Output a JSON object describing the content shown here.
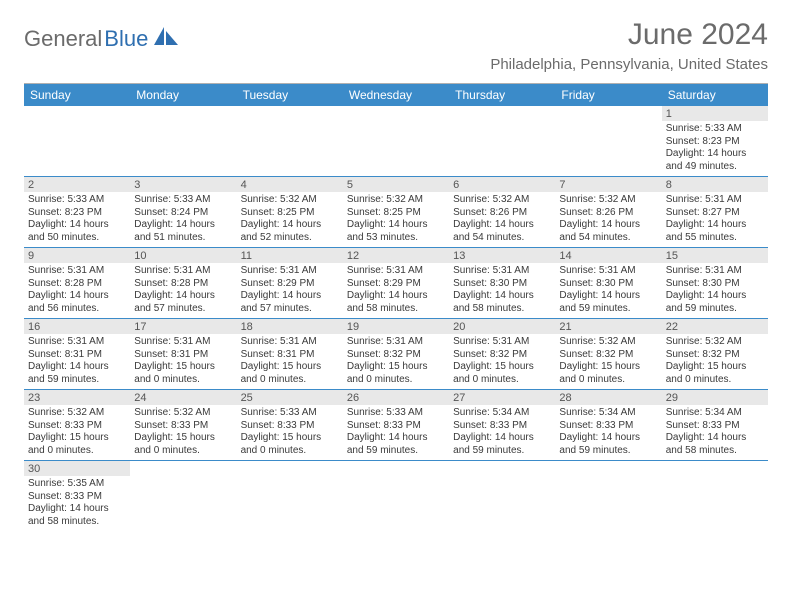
{
  "logo": {
    "gray": "General",
    "blue": "Blue"
  },
  "title": "June 2024",
  "location": "Philadelphia, Pennsylvania, United States",
  "weekdays": [
    "Sunday",
    "Monday",
    "Tuesday",
    "Wednesday",
    "Thursday",
    "Friday",
    "Saturday"
  ],
  "colors": {
    "header_bg": "#3b8bc9",
    "header_text": "#ffffff",
    "daynum_bg": "#e8e8e8",
    "title_color": "#6b6b6b",
    "logo_gray": "#6b6b6b",
    "logo_blue": "#2f6fb0",
    "row_border": "#3b8bc9"
  },
  "weeks": [
    [
      null,
      null,
      null,
      null,
      null,
      null,
      {
        "n": "1",
        "sr": "Sunrise: 5:33 AM",
        "ss": "Sunset: 8:23 PM",
        "d1": "Daylight: 14 hours",
        "d2": "and 49 minutes."
      }
    ],
    [
      {
        "n": "2",
        "sr": "Sunrise: 5:33 AM",
        "ss": "Sunset: 8:23 PM",
        "d1": "Daylight: 14 hours",
        "d2": "and 50 minutes."
      },
      {
        "n": "3",
        "sr": "Sunrise: 5:33 AM",
        "ss": "Sunset: 8:24 PM",
        "d1": "Daylight: 14 hours",
        "d2": "and 51 minutes."
      },
      {
        "n": "4",
        "sr": "Sunrise: 5:32 AM",
        "ss": "Sunset: 8:25 PM",
        "d1": "Daylight: 14 hours",
        "d2": "and 52 minutes."
      },
      {
        "n": "5",
        "sr": "Sunrise: 5:32 AM",
        "ss": "Sunset: 8:25 PM",
        "d1": "Daylight: 14 hours",
        "d2": "and 53 minutes."
      },
      {
        "n": "6",
        "sr": "Sunrise: 5:32 AM",
        "ss": "Sunset: 8:26 PM",
        "d1": "Daylight: 14 hours",
        "d2": "and 54 minutes."
      },
      {
        "n": "7",
        "sr": "Sunrise: 5:32 AM",
        "ss": "Sunset: 8:26 PM",
        "d1": "Daylight: 14 hours",
        "d2": "and 54 minutes."
      },
      {
        "n": "8",
        "sr": "Sunrise: 5:31 AM",
        "ss": "Sunset: 8:27 PM",
        "d1": "Daylight: 14 hours",
        "d2": "and 55 minutes."
      }
    ],
    [
      {
        "n": "9",
        "sr": "Sunrise: 5:31 AM",
        "ss": "Sunset: 8:28 PM",
        "d1": "Daylight: 14 hours",
        "d2": "and 56 minutes."
      },
      {
        "n": "10",
        "sr": "Sunrise: 5:31 AM",
        "ss": "Sunset: 8:28 PM",
        "d1": "Daylight: 14 hours",
        "d2": "and 57 minutes."
      },
      {
        "n": "11",
        "sr": "Sunrise: 5:31 AM",
        "ss": "Sunset: 8:29 PM",
        "d1": "Daylight: 14 hours",
        "d2": "and 57 minutes."
      },
      {
        "n": "12",
        "sr": "Sunrise: 5:31 AM",
        "ss": "Sunset: 8:29 PM",
        "d1": "Daylight: 14 hours",
        "d2": "and 58 minutes."
      },
      {
        "n": "13",
        "sr": "Sunrise: 5:31 AM",
        "ss": "Sunset: 8:30 PM",
        "d1": "Daylight: 14 hours",
        "d2": "and 58 minutes."
      },
      {
        "n": "14",
        "sr": "Sunrise: 5:31 AM",
        "ss": "Sunset: 8:30 PM",
        "d1": "Daylight: 14 hours",
        "d2": "and 59 minutes."
      },
      {
        "n": "15",
        "sr": "Sunrise: 5:31 AM",
        "ss": "Sunset: 8:30 PM",
        "d1": "Daylight: 14 hours",
        "d2": "and 59 minutes."
      }
    ],
    [
      {
        "n": "16",
        "sr": "Sunrise: 5:31 AM",
        "ss": "Sunset: 8:31 PM",
        "d1": "Daylight: 14 hours",
        "d2": "and 59 minutes."
      },
      {
        "n": "17",
        "sr": "Sunrise: 5:31 AM",
        "ss": "Sunset: 8:31 PM",
        "d1": "Daylight: 15 hours",
        "d2": "and 0 minutes."
      },
      {
        "n": "18",
        "sr": "Sunrise: 5:31 AM",
        "ss": "Sunset: 8:31 PM",
        "d1": "Daylight: 15 hours",
        "d2": "and 0 minutes."
      },
      {
        "n": "19",
        "sr": "Sunrise: 5:31 AM",
        "ss": "Sunset: 8:32 PM",
        "d1": "Daylight: 15 hours",
        "d2": "and 0 minutes."
      },
      {
        "n": "20",
        "sr": "Sunrise: 5:31 AM",
        "ss": "Sunset: 8:32 PM",
        "d1": "Daylight: 15 hours",
        "d2": "and 0 minutes."
      },
      {
        "n": "21",
        "sr": "Sunrise: 5:32 AM",
        "ss": "Sunset: 8:32 PM",
        "d1": "Daylight: 15 hours",
        "d2": "and 0 minutes."
      },
      {
        "n": "22",
        "sr": "Sunrise: 5:32 AM",
        "ss": "Sunset: 8:32 PM",
        "d1": "Daylight: 15 hours",
        "d2": "and 0 minutes."
      }
    ],
    [
      {
        "n": "23",
        "sr": "Sunrise: 5:32 AM",
        "ss": "Sunset: 8:33 PM",
        "d1": "Daylight: 15 hours",
        "d2": "and 0 minutes."
      },
      {
        "n": "24",
        "sr": "Sunrise: 5:32 AM",
        "ss": "Sunset: 8:33 PM",
        "d1": "Daylight: 15 hours",
        "d2": "and 0 minutes."
      },
      {
        "n": "25",
        "sr": "Sunrise: 5:33 AM",
        "ss": "Sunset: 8:33 PM",
        "d1": "Daylight: 15 hours",
        "d2": "and 0 minutes."
      },
      {
        "n": "26",
        "sr": "Sunrise: 5:33 AM",
        "ss": "Sunset: 8:33 PM",
        "d1": "Daylight: 14 hours",
        "d2": "and 59 minutes."
      },
      {
        "n": "27",
        "sr": "Sunrise: 5:34 AM",
        "ss": "Sunset: 8:33 PM",
        "d1": "Daylight: 14 hours",
        "d2": "and 59 minutes."
      },
      {
        "n": "28",
        "sr": "Sunrise: 5:34 AM",
        "ss": "Sunset: 8:33 PM",
        "d1": "Daylight: 14 hours",
        "d2": "and 59 minutes."
      },
      {
        "n": "29",
        "sr": "Sunrise: 5:34 AM",
        "ss": "Sunset: 8:33 PM",
        "d1": "Daylight: 14 hours",
        "d2": "and 58 minutes."
      }
    ],
    [
      {
        "n": "30",
        "sr": "Sunrise: 5:35 AM",
        "ss": "Sunset: 8:33 PM",
        "d1": "Daylight: 14 hours",
        "d2": "and 58 minutes."
      },
      null,
      null,
      null,
      null,
      null,
      null
    ]
  ]
}
